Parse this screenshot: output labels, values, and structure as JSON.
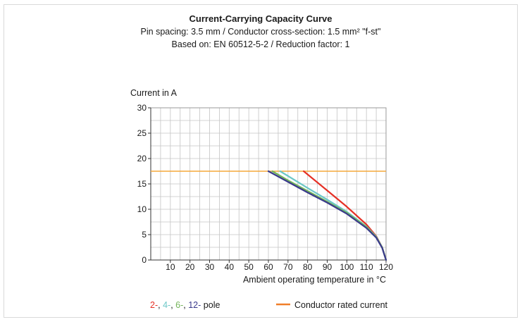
{
  "chart_data": {
    "type": "line",
    "title": "Current-Carrying Capacity Curve",
    "subtitle_line1": "Pin spacing: 3.5 mm / Conductor cross-section: 1.5 mm² \"f-st\"",
    "subtitle_line2": "Based on: EN 60512-5-2 / Reduction factor: 1",
    "ylabel": "Current in A",
    "xlabel": "Ambient operating temperature in °C",
    "xlim": [
      0,
      120
    ],
    "ylim": [
      0,
      30
    ],
    "x_ticks": [
      10,
      20,
      30,
      40,
      50,
      60,
      70,
      80,
      90,
      100,
      110,
      120
    ],
    "y_ticks": [
      0,
      5,
      10,
      15,
      20,
      25,
      30
    ],
    "grid": true,
    "rated_current": {
      "name": "Conductor rated current",
      "value": 17.5,
      "color": "#f5a83a",
      "legend_color": "#f07f2a"
    },
    "series": [
      {
        "name": "2-",
        "color": "#e53025",
        "x": [
          78,
          90,
          100,
          110,
          115,
          118,
          120
        ],
        "y": [
          17.5,
          13.7,
          10.5,
          7.0,
          4.7,
          2.5,
          0
        ]
      },
      {
        "name": "4-",
        "color": "#6cc7c7",
        "x": [
          66,
          80,
          90,
          100,
          110,
          115,
          118,
          120
        ],
        "y": [
          17.5,
          14.2,
          11.9,
          9.5,
          6.6,
          4.6,
          2.5,
          0
        ]
      },
      {
        "name": "6-",
        "color": "#74b55a",
        "x": [
          62,
          70,
          80,
          90,
          100,
          110,
          115,
          118,
          120
        ],
        "y": [
          17.5,
          15.7,
          13.6,
          11.5,
          9.3,
          6.5,
          4.5,
          2.5,
          0
        ]
      },
      {
        "name": "12-",
        "color": "#3a3a8c",
        "x": [
          60,
          70,
          80,
          90,
          100,
          110,
          115,
          118,
          120
        ],
        "y": [
          17.5,
          15.4,
          13.3,
          11.3,
          9.1,
          6.3,
          4.4,
          2.4,
          0
        ]
      }
    ],
    "legend_suffix": "pole"
  }
}
